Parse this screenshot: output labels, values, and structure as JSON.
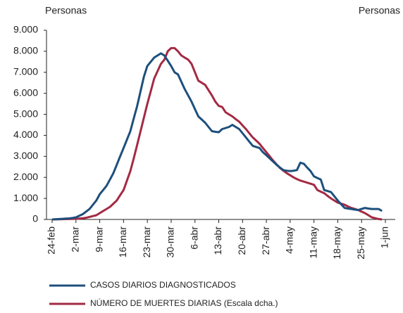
{
  "chart_data": {
    "type": "line",
    "y_label": "Personas",
    "y2_label": "Personas",
    "categories": [
      "24-feb",
      null,
      null,
      null,
      null,
      null,
      null,
      "2-mar",
      null,
      null,
      null,
      null,
      null,
      null,
      "9-mar",
      null,
      null,
      null,
      null,
      null,
      null,
      "16-mar",
      null,
      null,
      null,
      null,
      null,
      null,
      "23-mar",
      null,
      null,
      null,
      null,
      null,
      null,
      "30-mar",
      null,
      null,
      null,
      null,
      null,
      null,
      "6-abr",
      null,
      null,
      null,
      null,
      null,
      null,
      "13-abr",
      null,
      null,
      null,
      null,
      null,
      null,
      "20-abr",
      null,
      null,
      null,
      null,
      null,
      null,
      "27-abr",
      null,
      null,
      null,
      null,
      null,
      null,
      "4-may",
      null,
      null,
      null,
      null,
      null,
      null,
      "11-may",
      null,
      null,
      null,
      null,
      null,
      null,
      "18-may",
      null,
      null,
      null,
      null,
      null,
      null,
      "25-may",
      null,
      null,
      null,
      null,
      null,
      null,
      "1-jun"
    ],
    "series": [
      {
        "name": "CASOS DIARIOS DIAGNOSTICADOS",
        "color": "#1d4f7c",
        "values": [
          0,
          10,
          20,
          30,
          40,
          50,
          75,
          100,
          175,
          250,
          375,
          500,
          700,
          900,
          1200,
          1400,
          1600,
          1900,
          2200,
          2600,
          3000,
          3400,
          3800,
          4200,
          4800,
          5400,
          6100,
          6800,
          7300,
          7500,
          7700,
          7800,
          7900,
          7800,
          7550,
          7300,
          7000,
          6900,
          6550,
          6200,
          5900,
          5600,
          5250,
          4900,
          4750,
          4600,
          4400,
          4200,
          4170,
          4150,
          4300,
          4350,
          4400,
          4500,
          4400,
          4300,
          4100,
          3900,
          3700,
          3500,
          3450,
          3400,
          3200,
          3050,
          2900,
          2750,
          2600,
          2470,
          2350,
          2320,
          2300,
          2320,
          2350,
          2700,
          2650,
          2470,
          2300,
          2050,
          1970,
          1900,
          1400,
          1350,
          1300,
          1100,
          900,
          720,
          550,
          520,
          500,
          470,
          450,
          500,
          550,
          520,
          500,
          500,
          500,
          400,
          null
        ]
      },
      {
        "name": "NÚMERO DE MUERTES DIARIAS (Escala dcha.)",
        "color": "#a32a44",
        "values": [
          0,
          4,
          8,
          12,
          16,
          20,
          25,
          30,
          45,
          60,
          80,
          120,
          160,
          200,
          300,
          400,
          500,
          600,
          750,
          900,
          1150,
          1400,
          1850,
          2300,
          2900,
          3550,
          4200,
          4850,
          5500,
          6100,
          6700,
          7050,
          7400,
          7600,
          8000,
          8150,
          8150,
          8000,
          7800,
          7700,
          7600,
          7400,
          7000,
          6600,
          6500,
          6400,
          6150,
          5900,
          5600,
          5400,
          5350,
          5100,
          5000,
          4900,
          4770,
          4650,
          4470,
          4300,
          4100,
          3900,
          3750,
          3600,
          3400,
          3200,
          3000,
          2800,
          2620,
          2450,
          2320,
          2200,
          2100,
          2000,
          1920,
          1850,
          1800,
          1750,
          1700,
          1650,
          1400,
          1320,
          1250,
          1120,
          1000,
          900,
          800,
          750,
          700,
          620,
          550,
          500,
          450,
          370,
          300,
          200,
          100,
          60,
          20,
          0,
          null
        ]
      }
    ],
    "ylim": [
      0,
      9000
    ],
    "yticks": [
      {
        "value": 0,
        "label": "0"
      },
      {
        "value": 1000,
        "label": "1.000"
      },
      {
        "value": 2000,
        "label": "2.000"
      },
      {
        "value": 3000,
        "label": "3.000"
      },
      {
        "value": 4000,
        "label": "4.000"
      },
      {
        "value": 5000,
        "label": "5.000"
      },
      {
        "value": 6000,
        "label": "6.000"
      },
      {
        "value": 7000,
        "label": "7.000"
      },
      {
        "value": 8000,
        "label": "8.000"
      },
      {
        "value": 9000,
        "label": "9.000"
      }
    ],
    "grid": false
  }
}
